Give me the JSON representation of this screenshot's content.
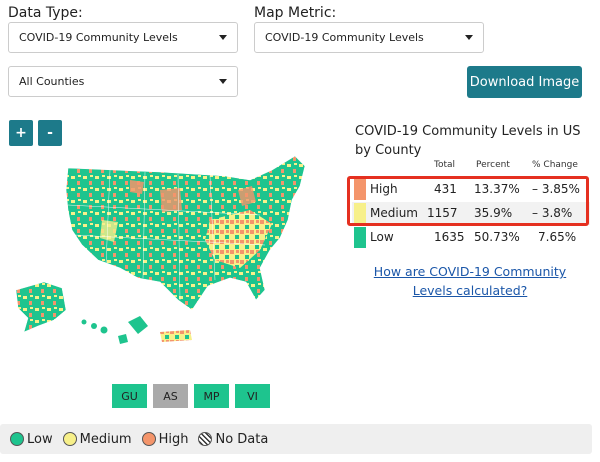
{
  "filters": {
    "data_type_label": "Data Type:",
    "data_type_value": "COVID-19 Community Levels",
    "map_metric_label": "Map Metric:",
    "map_metric_value": "COVID-19 Community Levels",
    "area_value": "All Counties"
  },
  "actions": {
    "download_label": "Download Image"
  },
  "zoom": {
    "in_label": "+",
    "out_label": "-"
  },
  "summary": {
    "title": "COVID-19 Community Levels in US by County",
    "headers": {
      "total": "Total",
      "percent": "Percent",
      "change": "% Change"
    },
    "rows": [
      {
        "level": "High",
        "total": "431",
        "percent": "13.37%",
        "change": "– 3.85%",
        "color": "#f4956b"
      },
      {
        "level": "Medium",
        "total": "1157",
        "percent": "35.9%",
        "change": "– 3.8%",
        "color": "#f7f08a"
      },
      {
        "level": "Low",
        "total": "1635",
        "percent": "50.73%",
        "change": "7.65%",
        "color": "#1ec48e"
      }
    ],
    "link_text": "How are COVID-19 Community Levels calculated?"
  },
  "territories": [
    {
      "label": "GU",
      "color": "#1ec48e"
    },
    {
      "label": "AS",
      "color": "#aaaaaa"
    },
    {
      "label": "MP",
      "color": "#1ec48e"
    },
    {
      "label": "VI",
      "color": "#1ec48e"
    }
  ],
  "legend": {
    "items": [
      {
        "label": "Low",
        "color": "#1ec48e"
      },
      {
        "label": "Medium",
        "color": "#f7f08a"
      },
      {
        "label": "High",
        "color": "#f4956b"
      },
      {
        "label": "No Data",
        "color": "hatch"
      }
    ]
  },
  "colors": {
    "accent": "#1d7a8a",
    "highlight_border": "#e53020",
    "link": "#1a56a8"
  }
}
